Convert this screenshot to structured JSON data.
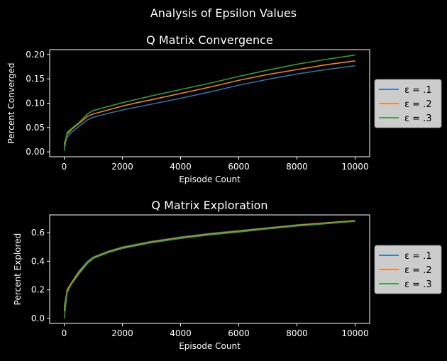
{
  "suptitle": "Analysis of Epsilon Values",
  "colors": {
    "background": "#000000",
    "foreground": "#ffffff",
    "legend_bg": "#cccccc",
    "legend_text": "#000000"
  },
  "chart_data": [
    {
      "type": "line",
      "title": "Q Matrix Convergence",
      "xlabel": "Episode Count",
      "ylabel": "Percent Converged",
      "xlim": [
        -500,
        10500
      ],
      "ylim": [
        -0.01,
        0.21
      ],
      "xticks": [
        0,
        2000,
        4000,
        6000,
        8000,
        10000
      ],
      "xtick_labels": [
        "0",
        "2000",
        "4000",
        "6000",
        "8000",
        "10000"
      ],
      "yticks": [
        0,
        0.05,
        0.1,
        0.15,
        0.2
      ],
      "ytick_labels": [
        "0.00",
        "0.05",
        "0.10",
        "0.15",
        "0.20"
      ],
      "legend_position": "right",
      "grid": false,
      "x": [
        0,
        100,
        250,
        500,
        800,
        1000,
        1500,
        2000,
        2500,
        3000,
        4000,
        5000,
        6000,
        7000,
        8000,
        9000,
        10000
      ],
      "series": [
        {
          "name": "ε = .1",
          "color": "#1f77b4",
          "values": [
            0.01,
            0.03,
            0.04,
            0.052,
            0.066,
            0.071,
            0.079,
            0.086,
            0.092,
            0.098,
            0.11,
            0.123,
            0.137,
            0.149,
            0.16,
            0.169,
            0.177
          ]
        },
        {
          "name": "ε = .2",
          "color": "#ff7f0e",
          "values": [
            0.015,
            0.036,
            0.046,
            0.058,
            0.073,
            0.078,
            0.086,
            0.094,
            0.101,
            0.107,
            0.12,
            0.133,
            0.147,
            0.159,
            0.169,
            0.179,
            0.187
          ]
        },
        {
          "name": "ε = .3",
          "color": "#2ca02c",
          "values": [
            0.002,
            0.04,
            0.048,
            0.06,
            0.078,
            0.085,
            0.093,
            0.101,
            0.108,
            0.115,
            0.128,
            0.141,
            0.155,
            0.168,
            0.18,
            0.19,
            0.199
          ]
        }
      ]
    },
    {
      "type": "line",
      "title": "Q Matrix Exploration",
      "xlabel": "Episode Count",
      "ylabel": "Percent Explored",
      "xlim": [
        -500,
        10500
      ],
      "ylim": [
        -0.035,
        0.725
      ],
      "xticks": [
        0,
        2000,
        4000,
        6000,
        8000,
        10000
      ],
      "xtick_labels": [
        "0",
        "2000",
        "4000",
        "6000",
        "8000",
        "10000"
      ],
      "yticks": [
        0,
        0.2,
        0.4,
        0.6
      ],
      "ytick_labels": [
        "0.0",
        "0.2",
        "0.4",
        "0.6"
      ],
      "legend_position": "right",
      "grid": false,
      "x": [
        0,
        100,
        250,
        500,
        800,
        1000,
        1500,
        2000,
        3000,
        4000,
        5000,
        6000,
        7000,
        8000,
        9000,
        10000
      ],
      "series": [
        {
          "name": "ε = .1",
          "color": "#1f77b4",
          "values": [
            0.08,
            0.19,
            0.25,
            0.33,
            0.4,
            0.43,
            0.47,
            0.5,
            0.54,
            0.57,
            0.595,
            0.615,
            0.635,
            0.655,
            0.67,
            0.685
          ]
        },
        {
          "name": "ε = .2",
          "color": "#ff7f0e",
          "values": [
            0.05,
            0.2,
            0.25,
            0.32,
            0.39,
            0.425,
            0.465,
            0.495,
            0.535,
            0.565,
            0.59,
            0.61,
            0.632,
            0.652,
            0.668,
            0.685
          ]
        },
        {
          "name": "ε = .3",
          "color": "#2ca02c",
          "values": [
            0.0,
            0.18,
            0.24,
            0.31,
            0.385,
            0.42,
            0.46,
            0.49,
            0.53,
            0.56,
            0.585,
            0.605,
            0.627,
            0.647,
            0.663,
            0.68
          ]
        }
      ]
    }
  ]
}
